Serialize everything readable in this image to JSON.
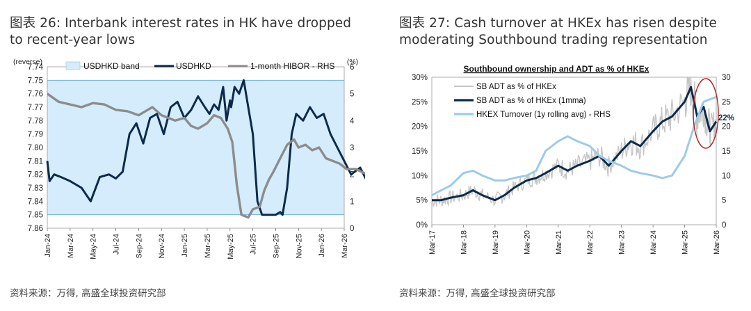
{
  "colors": {
    "band": "#d4ecfb",
    "usdhkd": "#0d2a4a",
    "hibor": "#8c8c8c",
    "sb_raw": "#c6c6c6",
    "sb_1mma": "#0d2a4a",
    "hkex": "#9ccbe9",
    "circle": "#b22a2a",
    "title_text": "#1a1a1a"
  },
  "left": {
    "title": "图表 26: Interbank interest rates in HK have dropped to recent-year lows",
    "source": "资料来源：万得, 高盛全球投资研究部",
    "legend": {
      "band": "USDHKD band",
      "usdhkd": "USDHKD",
      "hibor": "1-month HIBOR - RHS"
    },
    "chart_data": {
      "type": "line",
      "left_axis_label": "(reverse)",
      "right_axis_label": "(%)",
      "left_axis": {
        "reversed": true,
        "range": [
          7.74,
          7.86
        ],
        "ticks": [
          "7.74",
          "7.75",
          "7.76",
          "7.77",
          "7.78",
          "7.79",
          "7.80",
          "7.81",
          "7.82",
          "7.83",
          "7.84",
          "7.85",
          "7.86"
        ]
      },
      "right_axis": {
        "range": [
          0,
          6
        ],
        "ticks": [
          "6",
          "5",
          "4",
          "3",
          "2",
          "1",
          "0"
        ]
      },
      "x_ticks": [
        "Jan-24",
        "Mar-24",
        "May-24",
        "Jul-24",
        "Sep-24",
        "Nov-24",
        "Jan-25",
        "Mar-25",
        "May-25",
        "Jul-25",
        "Sep-25",
        "Nov-25",
        "Jan-26",
        "Mar-26"
      ],
      "band": {
        "lower": 7.75,
        "upper": 7.85
      },
      "series": [
        {
          "name": "USDHKD",
          "axis": "left",
          "x": [
            0,
            0.1,
            0.3,
            0.6,
            1,
            1.5,
            1.9,
            2.3,
            2.7,
            3,
            3.3,
            3.6,
            3.9,
            4.2,
            4.5,
            4.8,
            5.1,
            5.4,
            5.7,
            6,
            6.3,
            6.6,
            6.9,
            7.1,
            7.3,
            7.5,
            7.7,
            7.85,
            8,
            8.05,
            8.1,
            8.2,
            8.4,
            8.6,
            8.8,
            9,
            9.2,
            9.4,
            9.6,
            9.8,
            10,
            10.2,
            10.3,
            10.5,
            10.7,
            10.9,
            11.2,
            11.5,
            11.8,
            12.1,
            12.4,
            12.7,
            13,
            13.3,
            13.7,
            14
          ],
          "y": [
            7.81,
            7.825,
            7.82,
            7.822,
            7.825,
            7.83,
            7.84,
            7.822,
            7.82,
            7.823,
            7.818,
            7.79,
            7.782,
            7.797,
            7.778,
            7.775,
            7.79,
            7.77,
            7.766,
            7.778,
            7.772,
            7.762,
            7.77,
            7.775,
            7.768,
            7.772,
            7.755,
            7.78,
            7.765,
            7.77,
            7.765,
            7.755,
            7.76,
            7.75,
            7.77,
            7.79,
            7.84,
            7.85,
            7.85,
            7.85,
            7.85,
            7.848,
            7.85,
            7.83,
            7.79,
            7.775,
            7.78,
            7.77,
            7.778,
            7.775,
            7.79,
            7.8,
            7.81,
            7.82,
            7.815,
            7.825
          ]
        },
        {
          "name": "1-month HIBOR",
          "axis": "right",
          "x": [
            0,
            0.5,
            1,
            1.5,
            2,
            2.5,
            3,
            3.5,
            4,
            4.3,
            4.6,
            5,
            5.3,
            5.6,
            6,
            6.3,
            6.6,
            7,
            7.3,
            7.6,
            7.9,
            8.1,
            8.3,
            8.5,
            8.8,
            9,
            9.3,
            9.5,
            9.7,
            9.9,
            10.2,
            10.5,
            10.8,
            11,
            11.3,
            11.6,
            11.9,
            12.2,
            12.5,
            12.8,
            13.1,
            13.5,
            14
          ],
          "y": [
            5,
            4.7,
            4.6,
            4.5,
            4.65,
            4.6,
            4.4,
            4.35,
            4.2,
            4.35,
            4.5,
            4.2,
            4.1,
            4,
            4.1,
            3.8,
            3.7,
            3.9,
            4.2,
            4.1,
            3.7,
            3.2,
            1.6,
            0.5,
            0.4,
            0.7,
            0.8,
            1.4,
            1.8,
            2.1,
            2.6,
            3.1,
            3.3,
            3.0,
            3.1,
            2.9,
            3.0,
            2.6,
            2.5,
            2.4,
            2.2,
            2.2,
            2.0
          ]
        }
      ]
    }
  },
  "right": {
    "title": "图表 27: Cash turnover at HKEx has risen despite moderating Southbound trading representation",
    "source": "资料来源：万得, 高盛全球投资研究部",
    "chart_title": "Southbound ownership and ADT as % of HKEx",
    "legend": {
      "sb_raw": "SB ADT as % of HKEx",
      "sb_1mma": "SB ADT as % of HKEx (1mma)",
      "hkex": "HKEX Turnover (1y rolling avg) - RHS"
    },
    "annotation": "22%",
    "chart_data": {
      "type": "line",
      "left_axis": {
        "range": [
          0,
          30
        ],
        "ticks": [
          "30%",
          "25%",
          "20%",
          "15%",
          "10%",
          "5%",
          "0%"
        ]
      },
      "right_axis": {
        "range": [
          0,
          30
        ],
        "ticks": [
          "30",
          "25",
          "20",
          "15",
          "10",
          "5",
          "0"
        ]
      },
      "x_ticks": [
        "Mar-17",
        "Mar-18",
        "Mar-19",
        "Mar-20",
        "Mar-21",
        "Mar-22",
        "Mar-23",
        "Mar-24",
        "Mar-25",
        "Mar-26"
      ],
      "series": [
        {
          "name": "SB ADT as % of HKEx (1mma)",
          "axis": "left",
          "x": [
            0,
            0.3,
            0.6,
            1,
            1.3,
            1.6,
            2,
            2.3,
            2.6,
            3,
            3.3,
            3.6,
            4,
            4.3,
            4.6,
            5,
            5.3,
            5.6,
            6,
            6.3,
            6.6,
            7,
            7.3,
            7.6,
            8,
            8.2,
            8.4,
            8.6,
            8.8,
            9
          ],
          "y": [
            5,
            5,
            5.5,
            6,
            7,
            6,
            5,
            6,
            7.5,
            9,
            9.5,
            10.5,
            12,
            11,
            12,
            13,
            14,
            12,
            15,
            17,
            16,
            19,
            21,
            22,
            25,
            28,
            22,
            24,
            19,
            21
          ]
        },
        {
          "name": "HKEX Turnover (1y rolling avg)",
          "axis": "right",
          "x": [
            0,
            0.3,
            0.6,
            1,
            1.3,
            1.6,
            2,
            2.3,
            2.6,
            3,
            3.3,
            3.6,
            4,
            4.3,
            4.6,
            5,
            5.3,
            5.6,
            6,
            6.3,
            6.6,
            7,
            7.3,
            7.6,
            8,
            8.3,
            8.6,
            9
          ],
          "y": [
            6,
            7,
            8,
            10.5,
            11,
            10,
            9,
            9,
            9.5,
            10,
            11,
            15,
            17,
            18,
            17,
            16,
            14,
            13,
            12,
            11,
            10.5,
            10,
            9.5,
            10,
            14,
            20,
            25,
            26
          ]
        }
      ]
    }
  }
}
